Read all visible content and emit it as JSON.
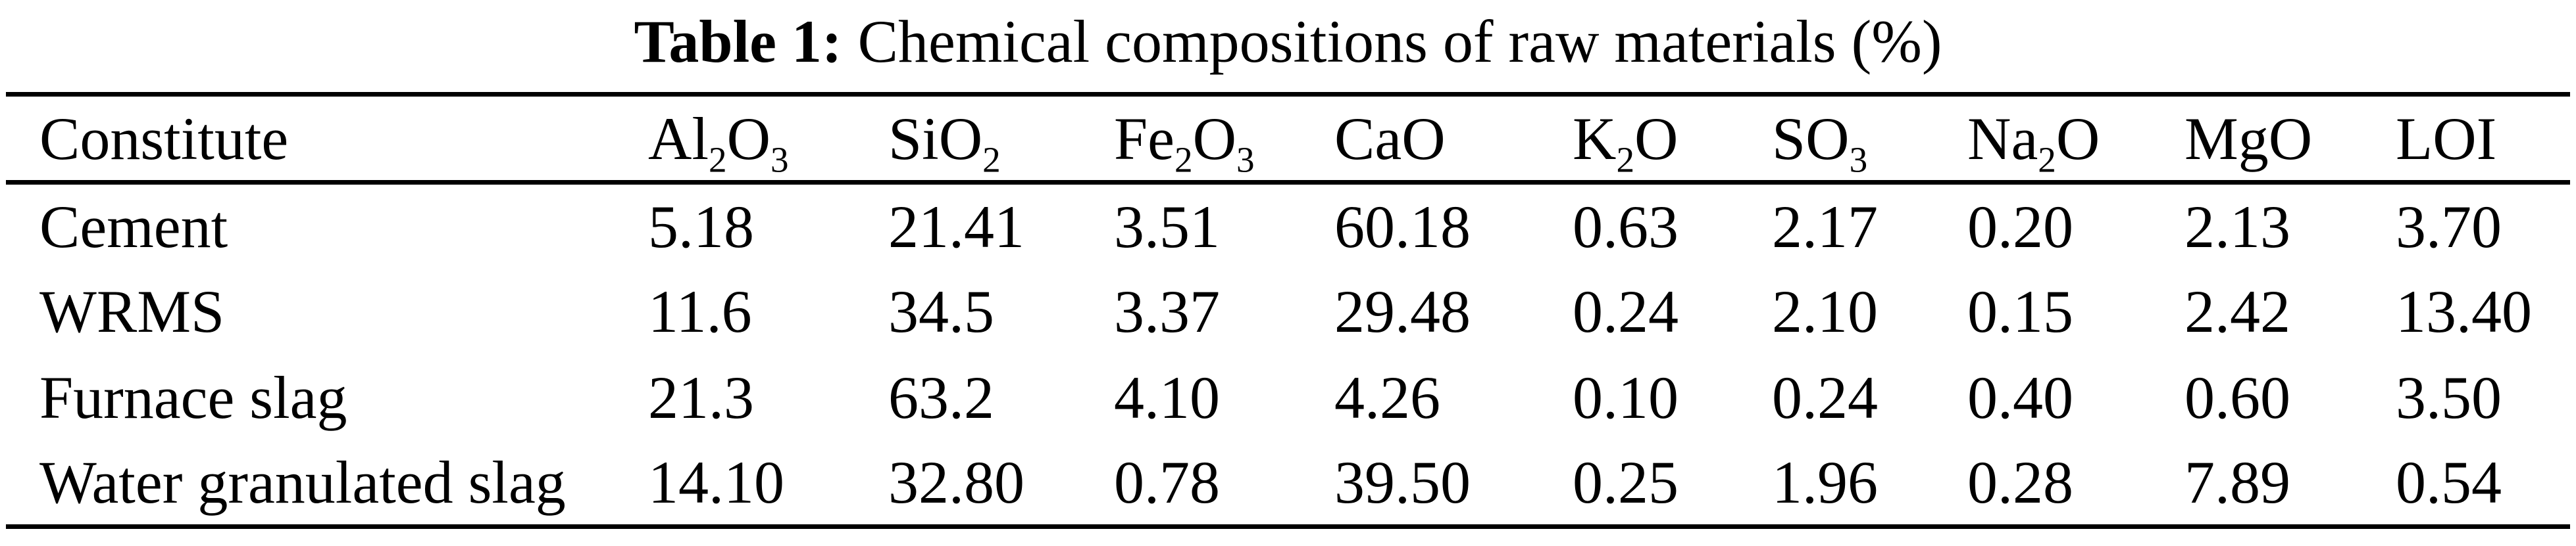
{
  "title": {
    "label": "Table 1:",
    "text": "Chemical compositions of raw materials (%)"
  },
  "chart_data": {
    "type": "table",
    "title": "Table 1: Chemical compositions of raw materials (%)",
    "columns": [
      "Constitute",
      "Al2O3",
      "SiO2",
      "Fe2O3",
      "CaO",
      "K2O",
      "SO3",
      "Na2O",
      "MgO",
      "LOI"
    ],
    "rows": [
      {
        "name": "Cement",
        "values": [
          "5.18",
          "21.41",
          "3.51",
          "60.18",
          "0.63",
          "2.17",
          "0.20",
          "2.13",
          "3.70"
        ]
      },
      {
        "name": "WRMS",
        "values": [
          "11.6",
          "34.5",
          "3.37",
          "29.48",
          "0.24",
          "2.10",
          "0.15",
          "2.42",
          "13.40"
        ]
      },
      {
        "name": "Furnace slag",
        "values": [
          "21.3",
          "63.2",
          "4.10",
          "4.26",
          "0.10",
          "0.24",
          "0.40",
          "0.60",
          "3.50"
        ]
      },
      {
        "name": "Water granulated slag",
        "values": [
          "14.10",
          "32.80",
          "0.78",
          "39.50",
          "0.25",
          "1.96",
          "0.28",
          "7.89",
          "0.54"
        ]
      }
    ]
  }
}
